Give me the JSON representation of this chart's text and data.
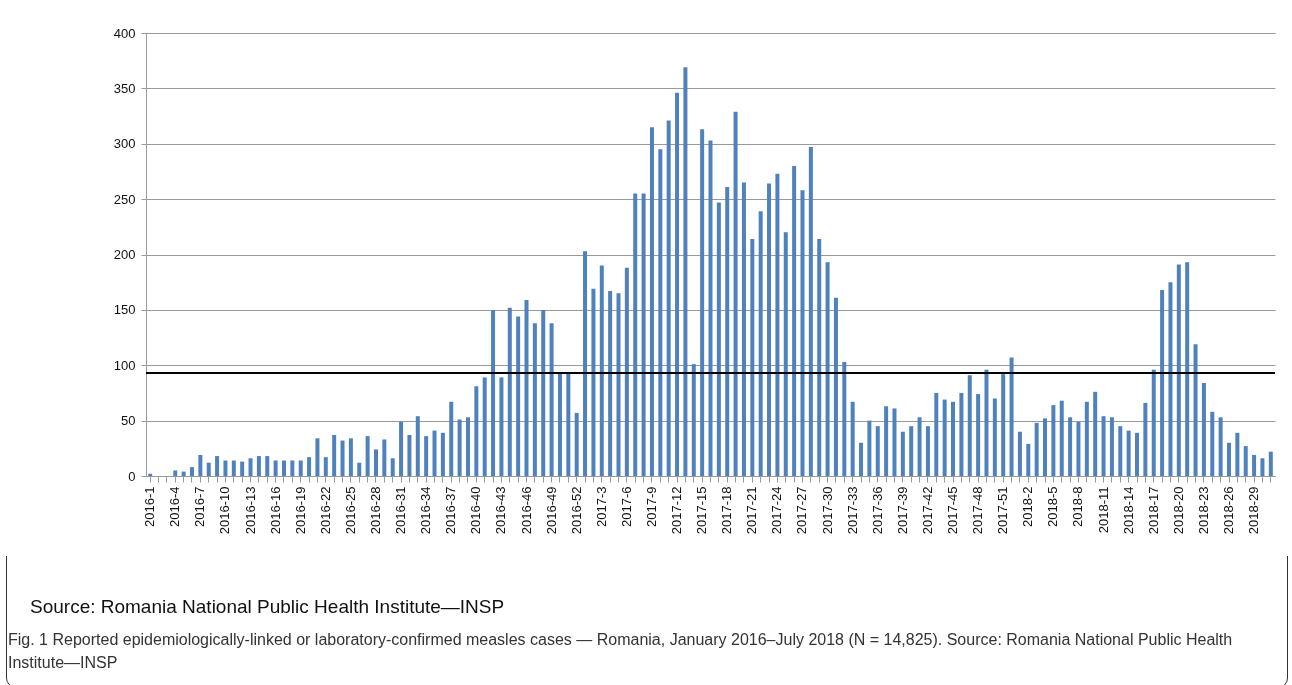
{
  "chart_data": {
    "type": "bar",
    "categories": [
      "2016-1",
      null,
      null,
      "2016-4",
      null,
      null,
      "2016-7",
      null,
      null,
      "2016-10",
      null,
      null,
      "2016-13",
      null,
      null,
      "2016-16",
      null,
      null,
      "2016-19",
      null,
      null,
      "2016-22",
      null,
      null,
      "2016-25",
      null,
      null,
      "2016-28",
      null,
      null,
      "2016-31",
      null,
      null,
      "2016-34",
      null,
      null,
      "2016-37",
      null,
      null,
      "2016-40",
      null,
      null,
      "2016-43",
      null,
      null,
      "2016-46",
      null,
      null,
      "2016-49",
      null,
      null,
      "2016-52",
      null,
      null,
      "2017-3",
      null,
      null,
      "2017-6",
      null,
      null,
      "2017-9",
      null,
      null,
      "2017-12",
      null,
      null,
      "2017-15",
      null,
      null,
      "2017-18",
      null,
      null,
      "2017-21",
      null,
      null,
      "2017-24",
      null,
      null,
      "2017-27",
      null,
      null,
      "2017-30",
      null,
      null,
      "2017-33",
      null,
      null,
      "2017-36",
      null,
      null,
      "2017-39",
      null,
      null,
      "2017-42",
      null,
      null,
      "2017-45",
      null,
      null,
      "2017-48",
      null,
      null,
      "2017-51",
      null,
      null,
      "2018-2",
      null,
      null,
      "2018-5",
      null,
      null,
      "2018-8",
      null,
      null,
      "2018-11",
      null,
      null,
      "2018-14",
      null,
      null,
      "2018-17",
      null,
      null,
      "2018-20",
      null,
      null,
      "2018-23",
      null,
      null,
      "2018-26",
      null,
      null,
      "2018-29",
      null,
      null
    ],
    "values": [
      2,
      0,
      0,
      5,
      4,
      8,
      19,
      12,
      18,
      14,
      14,
      13,
      16,
      18,
      18,
      14,
      14,
      14,
      14,
      17,
      34,
      17,
      37,
      32,
      34,
      12,
      36,
      24,
      33,
      16,
      49,
      37,
      54,
      36,
      41,
      39,
      67,
      51,
      53,
      81,
      89,
      150,
      89,
      152,
      144,
      159,
      138,
      150,
      138,
      94,
      93,
      57,
      203,
      169,
      190,
      167,
      165,
      188,
      255,
      255,
      315,
      295,
      321,
      346,
      369,
      101,
      313,
      303,
      247,
      261,
      329,
      265,
      214,
      239,
      264,
      273,
      220,
      280,
      258,
      297,
      214,
      193,
      161,
      103,
      67,
      30,
      50,
      45,
      63,
      61,
      40,
      45,
      53,
      45,
      75,
      69,
      67,
      75,
      91,
      74,
      96,
      70,
      92,
      107,
      40,
      29,
      48,
      52,
      64,
      68,
      53,
      49,
      67,
      76,
      54,
      53,
      45,
      41,
      39,
      66,
      96,
      168,
      175,
      191,
      193,
      119,
      84,
      58,
      53,
      30,
      39,
      27,
      19,
      16,
      22
    ],
    "color": "#4f81bd",
    "ylim": [
      0,
      400
    ],
    "yticks": [
      0,
      50,
      100,
      150,
      200,
      250,
      300,
      350,
      400
    ],
    "grid": "y",
    "ref_lines": [
      {
        "axis": "y",
        "value": 93,
        "color": "#000000"
      }
    ],
    "annotations": [
      "Source: Romania National Public Health Institute—INSP",
      "Fig. 1 Reported epidemiologically-linked or laboratory-confirmed measles cases — Romania, January 2016–July 2018 (N = 14,825). Source: Romania National Public Health Institute—INSP"
    ]
  }
}
